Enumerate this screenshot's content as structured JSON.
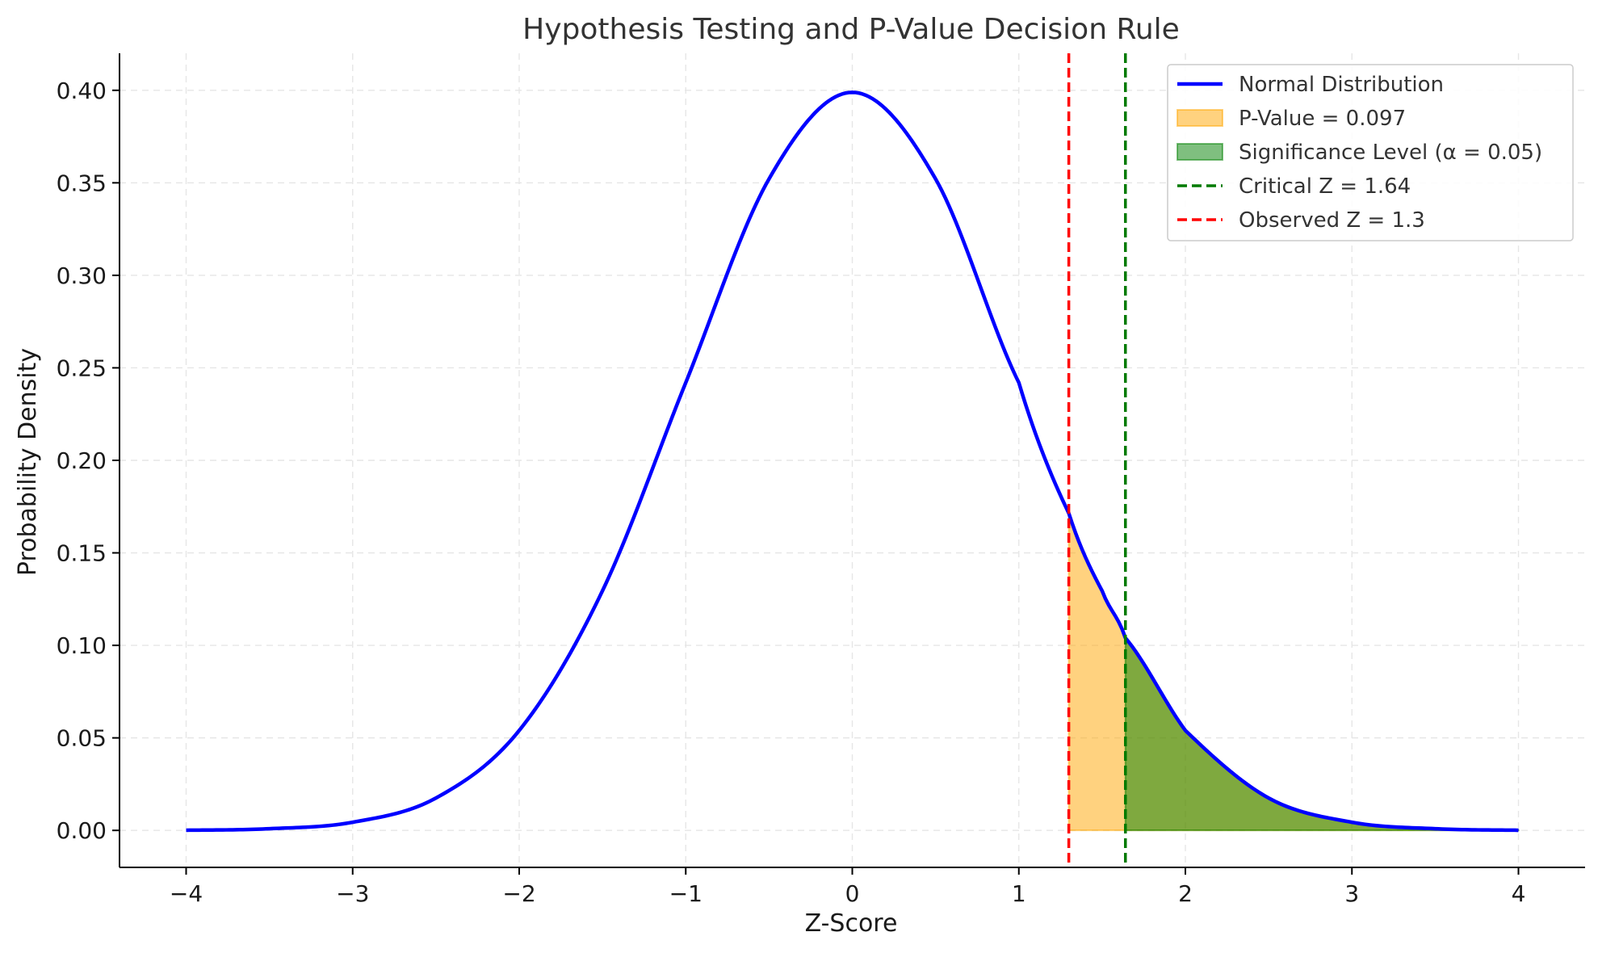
{
  "chart_data": {
    "type": "area",
    "title": "Hypothesis Testing and P-Value Decision Rule",
    "xlabel": "Z-Score",
    "ylabel": "Probability Density",
    "xlim": [
      -4.4,
      4.4
    ],
    "ylim": [
      -0.02,
      0.42
    ],
    "x_ticks": [
      -4,
      -3,
      -2,
      -1,
      0,
      1,
      2,
      3,
      4
    ],
    "x_tick_labels": [
      "−4",
      "−3",
      "−2",
      "−1",
      "0",
      "1",
      "2",
      "3",
      "4"
    ],
    "y_ticks": [
      0.0,
      0.05,
      0.1,
      0.15,
      0.2,
      0.25,
      0.3,
      0.35,
      0.4
    ],
    "y_tick_labels": [
      "0.00",
      "0.05",
      "0.10",
      "0.15",
      "0.20",
      "0.25",
      "0.30",
      "0.35",
      "0.40"
    ],
    "grid": true,
    "legend_position": "top-right",
    "series": [
      {
        "name": "Normal Distribution",
        "kind": "line",
        "color": "#0000ff",
        "x": [
          -4.0,
          -3.5,
          -3.0,
          -2.5,
          -2.0,
          -1.5,
          -1.0,
          -0.5,
          0.0,
          0.5,
          1.0,
          1.3,
          1.5,
          1.64,
          2.0,
          2.5,
          3.0,
          3.5,
          4.0
        ],
        "y": [
          0.0001,
          0.0009,
          0.0044,
          0.0175,
          0.054,
          0.1295,
          0.242,
          0.3521,
          0.3989,
          0.3521,
          0.242,
          0.1714,
          0.1295,
          0.104,
          0.054,
          0.0175,
          0.0044,
          0.0009,
          0.0001
        ]
      },
      {
        "name": "P-Value = 0.097",
        "kind": "area",
        "color": "#ffa500",
        "x_range": [
          1.3,
          4.0
        ]
      },
      {
        "name": "Significance Level (α = 0.05)",
        "kind": "area",
        "color": "#008000",
        "x_range": [
          1.64,
          4.0
        ]
      },
      {
        "name": "Critical Z = 1.64",
        "kind": "vline",
        "color": "#007a00",
        "x": 1.64
      },
      {
        "name": "Observed Z = 1.3",
        "kind": "vline",
        "color": "#ff0000",
        "x": 1.3
      }
    ]
  }
}
